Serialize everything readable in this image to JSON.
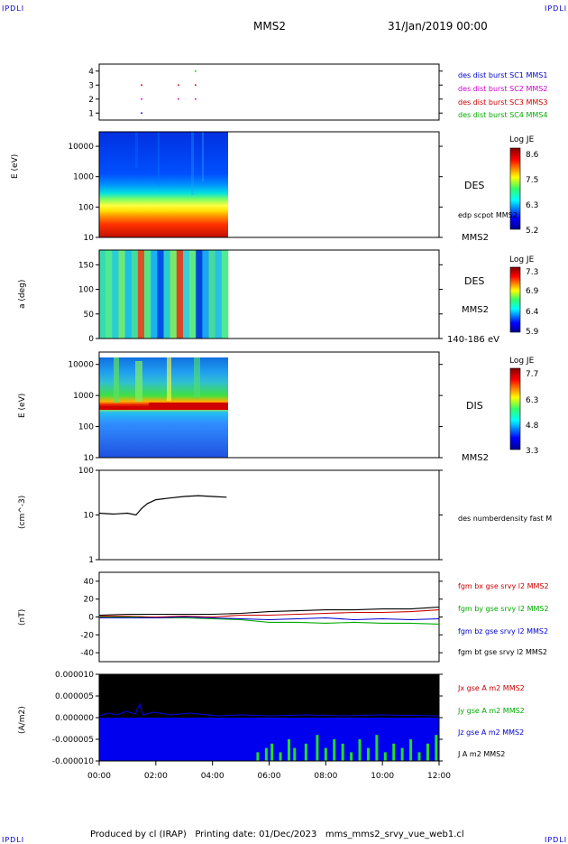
{
  "header": {
    "logo": "IPDLI",
    "spacecraft": "MMS2",
    "date": "31/Jan/2019 00:00"
  },
  "footer": {
    "text": "Produced by cl (IRAP)   Printing date: 01/Dec/2023   mms_mms2_srvy_vue_web1.cl"
  },
  "chart_data": [
    {
      "type": "scatter",
      "panel": "burst-availability",
      "x_range_hours": [
        0,
        12
      ],
      "ylim": [
        0.5,
        4.5
      ],
      "yticks": [
        "1",
        "2",
        "3",
        "4"
      ],
      "series": [
        {
          "name": "des dist burst SC1 MMS1",
          "color": "#0000cc",
          "y": 1,
          "x": [
            1.5
          ]
        },
        {
          "name": "des dist burst SC2 MMS2",
          "color": "#cc00cc",
          "y": 2,
          "x": [
            1.5,
            2.8,
            3.4
          ]
        },
        {
          "name": "des dist burst SC3 MMS3",
          "color": "#cc0000",
          "y": 3,
          "x": [
            1.5,
            2.8,
            3.4
          ]
        },
        {
          "name": "des dist burst SC4 MMS4",
          "color": "#00cc00",
          "y": 4,
          "x": [
            3.4
          ]
        }
      ]
    },
    {
      "type": "heatmap",
      "panel": "des-energy",
      "ylabel": "E (eV)",
      "yscale": "log",
      "ylim": [
        10,
        30000
      ],
      "yticks": [
        "10",
        "100",
        "1000",
        "10000"
      ],
      "data_end_hours": 4.5,
      "label": "DES",
      "sublabel": "MMS2",
      "overlay_label": "edp scpot MMS2",
      "colorbar": {
        "title": "Log JE",
        "ticks": [
          "8.6",
          "7.5",
          "6.3",
          "5.2"
        ]
      }
    },
    {
      "type": "heatmap",
      "panel": "des-pitch-angle",
      "ylabel": "a (deg)",
      "ylim": [
        0,
        180
      ],
      "yticks": [
        "0",
        "50",
        "100",
        "150"
      ],
      "data_end_hours": 4.5,
      "label": "DES",
      "sublabel": "MMS2",
      "energy_range": "140-186 eV",
      "colorbar": {
        "title": "Log JE",
        "ticks": [
          "7.3",
          "6.9",
          "6.4",
          "5.9"
        ]
      }
    },
    {
      "type": "heatmap",
      "panel": "dis-energy",
      "ylabel": "E (eV)",
      "yscale": "log",
      "ylim": [
        10,
        25000
      ],
      "yticks": [
        "10",
        "100",
        "1000",
        "10000"
      ],
      "data_end_hours": 4.5,
      "label": "DIS",
      "sublabel": "MMS2",
      "colorbar": {
        "title": "Log JE",
        "ticks": [
          "7.7",
          "6.3",
          "4.8",
          "3.3"
        ]
      }
    },
    {
      "type": "line",
      "panel": "density",
      "ylabel": "(cm^-3)",
      "yscale": "log",
      "ylim": [
        1,
        100
      ],
      "yticks": [
        "1",
        "10",
        "100"
      ],
      "series": [
        {
          "name": "des numberdensity fast M",
          "color": "#000000",
          "x": [
            0,
            0.5,
            1.0,
            1.3,
            1.5,
            1.7,
            2.0,
            2.5,
            3.0,
            3.5,
            4.0,
            4.5
          ],
          "y": [
            11,
            10.5,
            11,
            10,
            14,
            18,
            22,
            24,
            26,
            27,
            26,
            25
          ]
        }
      ]
    },
    {
      "type": "line",
      "panel": "magnetic-field",
      "ylabel": "(nT)",
      "ylim": [
        -50,
        50
      ],
      "yticks": [
        "-40",
        "-20",
        "0",
        "20",
        "40"
      ],
      "x": [
        0,
        1,
        2,
        3,
        4,
        5,
        6,
        7,
        8,
        9,
        10,
        11,
        12
      ],
      "series": [
        {
          "name": "fgm bx gse srvy l2 MMS2",
          "color": "#cc0000",
          "values": [
            1,
            1,
            0,
            1,
            0,
            2,
            2,
            3,
            4,
            5,
            5,
            6,
            8
          ]
        },
        {
          "name": "fgm by gse srvy l2 MMS2",
          "color": "#00aa00",
          "values": [
            0,
            0,
            -1,
            -1,
            -2,
            -3,
            -6,
            -6,
            -7,
            -6,
            -7,
            -7,
            -8
          ]
        },
        {
          "name": "fgm bz gse srvy l2 MMS2",
          "color": "#0000cc",
          "values": [
            -1,
            -1,
            -1,
            0,
            -1,
            -2,
            -3,
            -2,
            -1,
            -3,
            -2,
            -3,
            -2
          ]
        },
        {
          "name": "fgm bt gse srvy l2 MMS2",
          "color": "#000000",
          "values": [
            2,
            3,
            3,
            3,
            3,
            4,
            6,
            7,
            8,
            8,
            9,
            9,
            11
          ]
        }
      ]
    },
    {
      "type": "area",
      "panel": "current-density",
      "ylabel": "(A/m2)",
      "ylim": [
        -1e-05,
        1e-05
      ],
      "yticks": [
        "-0.000010",
        "-0.000005",
        "0.000000",
        "0.000005",
        "0.000010"
      ],
      "xticks": [
        "00:00",
        "02:00",
        "04:00",
        "06:00",
        "08:00",
        "10:00",
        "12:00"
      ],
      "series": [
        {
          "name": "Jx gse A m2 MMS2",
          "color": "#cc0000"
        },
        {
          "name": "Jy gse A m2 MMS2",
          "color": "#00cc00"
        },
        {
          "name": "Jz gse A m2 MMS2",
          "color": "#0000cc"
        },
        {
          "name": "J A m2 MMS2",
          "color": "#000000"
        }
      ]
    }
  ]
}
